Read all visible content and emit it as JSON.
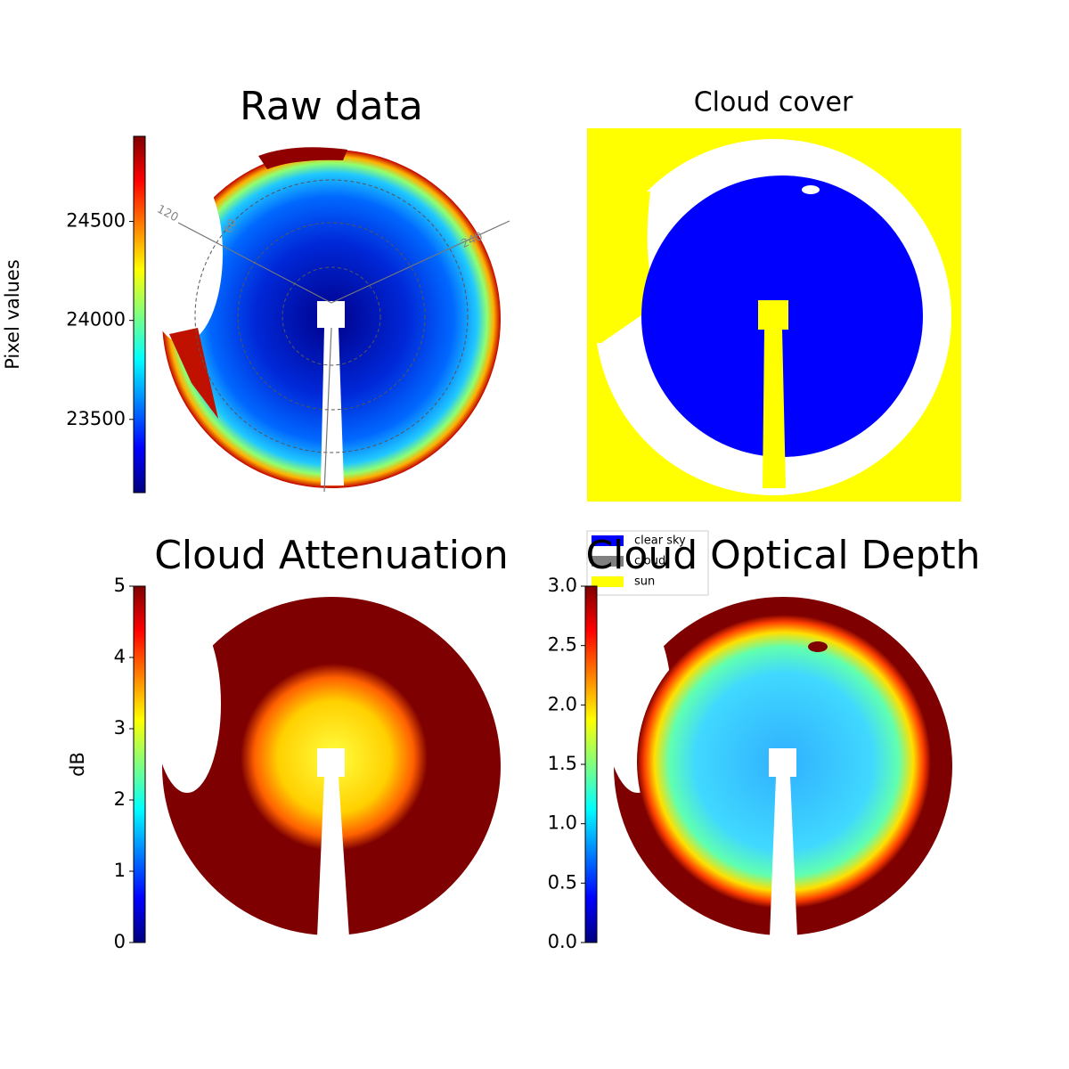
{
  "chart_data": [
    {
      "type": "image",
      "title": "Raw data",
      "annotations": [
        "120",
        "60",
        "240"
      ],
      "colorbar": {
        "label": "Pixel values",
        "lim": [
          23130,
          24930
        ],
        "ticks": [
          23500,
          24000,
          24500
        ]
      }
    },
    {
      "type": "image",
      "title": "Cloud cover",
      "series": [
        {
          "name": "clear sky",
          "color": "#0000ff"
        },
        {
          "name": "cloud",
          "color": "#808080"
        },
        {
          "name": "sun",
          "color": "#ffff00"
        }
      ]
    },
    {
      "type": "image",
      "title": "Cloud Attenuation",
      "colorbar": {
        "label": "dB",
        "lim": [
          0,
          5
        ],
        "ticks": [
          0,
          1,
          2,
          3,
          4,
          5
        ]
      }
    },
    {
      "type": "image",
      "title": "Cloud Optical Depth",
      "colorbar": {
        "lim": [
          0,
          3
        ],
        "ticks": [
          {
            "value": 0,
            "label": "0.0"
          },
          {
            "value": 0.5,
            "label": "0.5"
          },
          {
            "value": 1,
            "label": "1.0"
          },
          {
            "value": 1.5,
            "label": "1.5"
          },
          {
            "value": 2,
            "label": "2.0"
          },
          {
            "value": 2.5,
            "label": "2.5"
          },
          {
            "value": 3,
            "label": "3.0"
          }
        ]
      }
    }
  ]
}
